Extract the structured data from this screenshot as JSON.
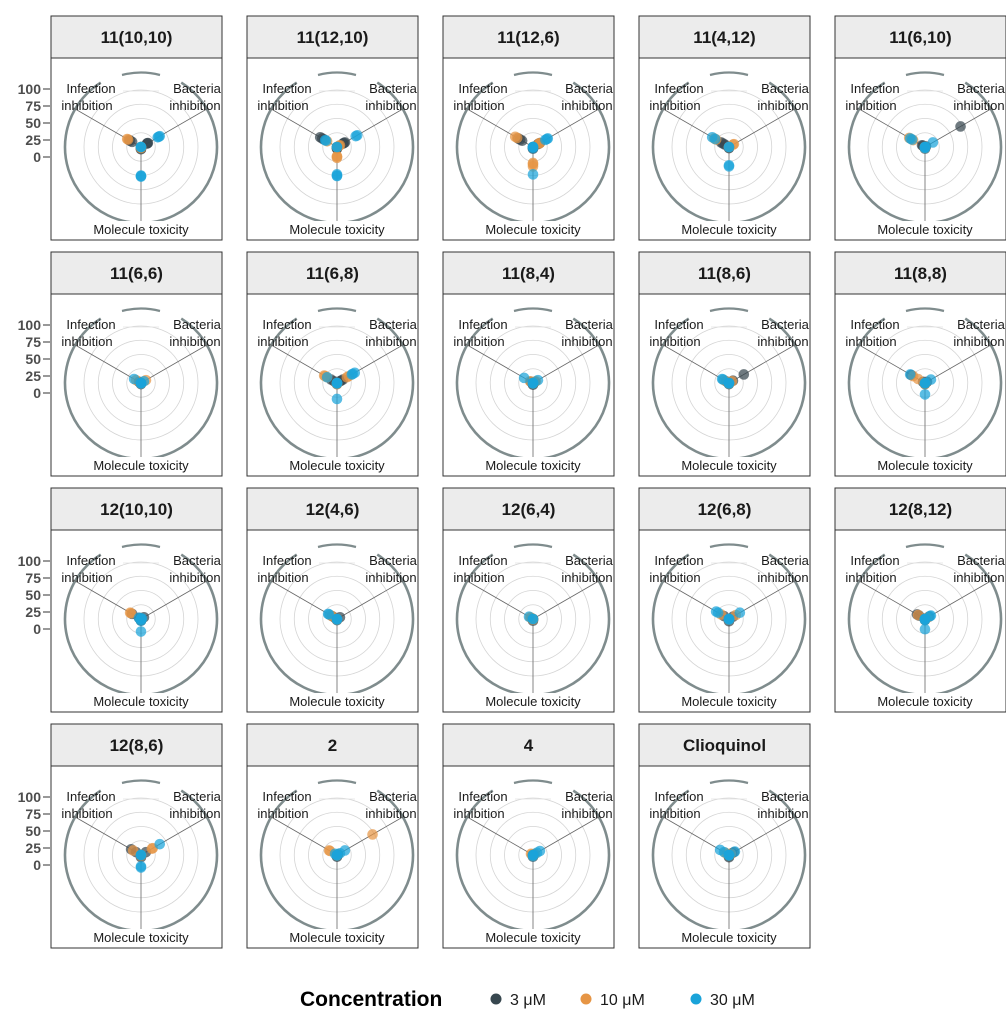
{
  "chart_data": {
    "type": "scatter",
    "layout": "faceted radar plots, 3 spokes each",
    "axes": [
      "Infection inhibition",
      "Bacteria inhibition",
      "Molecule toxicity"
    ],
    "axis_labels": {
      "infection": [
        "Infection",
        "inhibition"
      ],
      "bacteria": [
        "Bacteria",
        "inhibition"
      ],
      "toxicity": "Molecule toxicity"
    },
    "radial_ticks": [
      "100",
      "75",
      "50",
      "25",
      "0"
    ],
    "radial_range": [
      0,
      100
    ],
    "grid": true,
    "legend": {
      "title": "Concentration",
      "position": "bottom",
      "items": [
        {
          "label": "3 μM",
          "color": "#37474f"
        },
        {
          "label": "10 μM",
          "color": "#e69545"
        },
        {
          "label": "30 μM",
          "color": "#1aa3d9"
        }
      ]
    },
    "series_order": [
      "3 μM",
      "10 μM",
      "30 μM"
    ],
    "panels": [
      {
        "title": "11(10,10)",
        "points": {
          "3 μM": [
            [
              18,
              12,
              3
            ],
            [
              22,
              14,
              4
            ],
            [
              24,
              13,
              2
            ]
          ],
          "10 μM": [
            [
              26,
              0,
              1
            ],
            [
              28,
              0,
              2
            ]
          ],
          "30 μM": [
            [
              0,
              34,
              50
            ],
            [
              0,
              36,
              52
            ],
            [
              0,
              38,
              51
            ]
          ]
        }
      },
      {
        "title": "11(12,10)",
        "points": {
          "3 μM": [
            [
              34,
              16,
              2
            ],
            [
              30,
              14,
              3
            ],
            [
              26,
              12,
              1
            ]
          ],
          "10 μM": [
            [
              20,
              4,
              17
            ],
            [
              0,
              6,
              19
            ],
            [
              0,
              0,
              16
            ]
          ],
          "30 μM": [
            [
              24,
              38,
              48
            ],
            [
              0,
              41,
              51
            ],
            [
              22,
              0,
              50
            ]
          ]
        }
      },
      {
        "title": "11(12,6)",
        "points": {
          "3 μM": [
            [
              30,
              14,
              3
            ],
            [
              26,
              12,
              2
            ],
            [
              22,
              10,
              1
            ]
          ],
          "10 μM": [
            [
              36,
              12,
              30
            ],
            [
              32,
              14,
              34
            ],
            [
              0,
              0,
              28
            ]
          ],
          "30 μM": [
            [
              0,
              25,
              48
            ],
            [
              0,
              30,
              0
            ],
            [
              0,
              28,
              2
            ]
          ]
        }
      },
      {
        "title": "11(4,12)",
        "points": {
          "3 μM": [
            [
              12,
              0,
              1
            ],
            [
              16,
              0,
              2
            ],
            [
              8,
              0,
              0
            ]
          ],
          "10 μM": [
            [
              26,
              10,
              0
            ],
            [
              30,
              8,
              0
            ]
          ],
          "30 μM": [
            [
              34,
              0,
              34
            ],
            [
              28,
              0,
              32
            ]
          ]
        }
      },
      {
        "title": "11(6,10)",
        "points": {
          "3 μM": [
            [
              0,
              72,
              0
            ],
            [
              4,
              0,
              3
            ],
            [
              6,
              2,
              1
            ]
          ],
          "10 μM": [
            [
              28,
              0,
              1
            ],
            [
              32,
              0,
              2
            ],
            [
              24,
              0,
              0
            ]
          ],
          "30 μM": [
            [
              30,
              0,
              0
            ],
            [
              0,
              16,
              2
            ],
            [
              26,
              0,
              1
            ]
          ]
        }
      },
      {
        "title": "11(6,6)",
        "points": {
          "3 μM": [
            [
              0,
              0,
              2
            ],
            [
              4,
              0,
              1
            ]
          ],
          "10 μM": [
            [
              10,
              0,
              1
            ],
            [
              0,
              10,
              0
            ]
          ],
          "30 μM": [
            [
              14,
              0,
              0
            ],
            [
              0,
              6,
              1
            ]
          ]
        }
      },
      {
        "title": "11(6,8)",
        "points": {
          "3 μM": [
            [
              12,
              8,
              1
            ],
            [
              0,
              12,
              2
            ],
            [
              6,
              6,
              0
            ]
          ],
          "10 μM": [
            [
              26,
              20,
              0
            ],
            [
              20,
              24,
              1
            ],
            [
              24,
              0,
              2
            ]
          ],
          "30 μM": [
            [
              0,
              36,
              28
            ],
            [
              20,
              32,
              0
            ],
            [
              0,
              30,
              1
            ]
          ]
        }
      },
      {
        "title": "11(8,4)",
        "points": {
          "3 μM": [
            [
              0,
              4,
              2
            ],
            [
              4,
              0,
              1
            ],
            [
              0,
              0,
              3
            ]
          ],
          "10 μM": [
            [
              6,
              0,
              1
            ],
            [
              0,
              6,
              0
            ]
          ],
          "30 μM": [
            [
              18,
              0,
              0
            ],
            [
              0,
              10,
              1
            ]
          ]
        }
      },
      {
        "title": "11(8,6)",
        "points": {
          "3 μM": [
            [
              0,
              30,
              1
            ],
            [
              6,
              0,
              2
            ],
            [
              0,
              8,
              0
            ]
          ],
          "10 μM": [
            [
              10,
              0,
              1
            ],
            [
              0,
              6,
              0
            ]
          ],
          "30 μM": [
            [
              14,
              0,
              0
            ],
            [
              12,
              0,
              1
            ]
          ]
        }
      },
      {
        "title": "11(8,8)",
        "points": {
          "3 μM": [
            [
              28,
              0,
              1
            ],
            [
              0,
              4,
              2
            ],
            [
              4,
              0,
              0
            ]
          ],
          "10 μM": [
            [
              24,
              0,
              2
            ],
            [
              14,
              0,
              0
            ]
          ],
          "30 μM": [
            [
              30,
              0,
              20
            ],
            [
              0,
              12,
              1
            ]
          ]
        }
      },
      {
        "title": "12(10,10)",
        "points": {
          "3 μM": [
            [
              18,
              0,
              1
            ],
            [
              0,
              6,
              2
            ],
            [
              4,
              0,
              3
            ]
          ],
          "10 μM": [
            [
              22,
              0,
              0
            ],
            [
              20,
              0,
              1
            ]
          ],
          "30 μM": [
            [
              0,
              0,
              22
            ],
            [
              4,
              0,
              1
            ],
            [
              0,
              2,
              3
            ]
          ]
        }
      },
      {
        "title": "12(4,6)",
        "points": {
          "3 μM": [
            [
              0,
              6,
              2
            ],
            [
              4,
              0,
              1
            ],
            [
              10,
              0,
              0
            ]
          ],
          "10 μM": [
            [
              14,
              0,
              1
            ],
            [
              10,
              0,
              0
            ]
          ],
          "30 μM": [
            [
              18,
              0,
              0
            ],
            [
              16,
              0,
              1
            ]
          ]
        }
      },
      {
        "title": "12(6,4)",
        "points": {
          "3 μM": [
            [
              0,
              0,
              3
            ],
            [
              2,
              0,
              1
            ]
          ],
          "10 μM": [
            [
              4,
              0,
              0
            ],
            [
              6,
              0,
              1
            ]
          ],
          "30 μM": [
            [
              8,
              0,
              0
            ]
          ]
        }
      },
      {
        "title": "12(6,8)",
        "points": {
          "3 μM": [
            [
              0,
              8,
              1
            ],
            [
              0,
              0,
              4
            ],
            [
              10,
              0,
              0
            ]
          ],
          "10 μM": [
            [
              0,
              14,
              0
            ],
            [
              16,
              0,
              1
            ]
          ],
          "30 μM": [
            [
              26,
              0,
              0
            ],
            [
              0,
              22,
              0
            ],
            [
              22,
              0,
              1
            ]
          ]
        }
      },
      {
        "title": "12(8,12)",
        "points": {
          "3 μM": [
            [
              16,
              0,
              1
            ],
            [
              12,
              0,
              0
            ],
            [
              0,
              8,
              2
            ]
          ],
          "10 μM": [
            [
              14,
              0,
              0
            ],
            [
              0,
              4,
              1
            ]
          ],
          "30 μM": [
            [
              0,
              12,
              18
            ],
            [
              0,
              10,
              0
            ],
            [
              0,
              0,
              2
            ]
          ]
        }
      },
      {
        "title": "12(8,6)",
        "points": {
          "3 μM": [
            [
              20,
              0,
              0
            ],
            [
              10,
              10,
              1
            ],
            [
              0,
              0,
              4
            ]
          ],
          "10 μM": [
            [
              0,
              24,
              0
            ],
            [
              0,
              22,
              1
            ],
            [
              16,
              0,
              0
            ]
          ],
          "30 μM": [
            [
              0,
              38,
              22
            ],
            [
              0,
              0,
              20
            ]
          ]
        }
      },
      {
        "title": "2",
        "points": {
          "3 μM": [
            [
              0,
              0,
              3
            ],
            [
              0,
              2,
              2
            ]
          ],
          "10 μM": [
            [
              16,
              0,
              0
            ],
            [
              0,
              72,
              0
            ],
            [
              14,
              0,
              1
            ]
          ],
          "30 μM": [
            [
              0,
              16,
              0
            ],
            [
              4,
              6,
              1
            ]
          ]
        }
      },
      {
        "title": "4",
        "points": {
          "3 μM": [
            [
              0,
              0,
              3
            ],
            [
              0,
              2,
              1
            ]
          ],
          "10 μM": [
            [
              4,
              0,
              0
            ],
            [
              2,
              4,
              1
            ]
          ],
          "30 μM": [
            [
              0,
              14,
              0
            ],
            [
              0,
              8,
              2
            ]
          ]
        }
      },
      {
        "title": "Clioquinol",
        "points": {
          "3 μM": [
            [
              0,
              0,
              4
            ],
            [
              0,
              10,
              1
            ],
            [
              0,
              6,
              2
            ]
          ],
          "10 μM": [
            [
              8,
              0,
              1
            ],
            [
              4,
              4,
              0
            ]
          ],
          "30 μM": [
            [
              18,
              0,
              0
            ],
            [
              0,
              12,
              1
            ],
            [
              10,
              0,
              0
            ]
          ]
        }
      }
    ]
  }
}
